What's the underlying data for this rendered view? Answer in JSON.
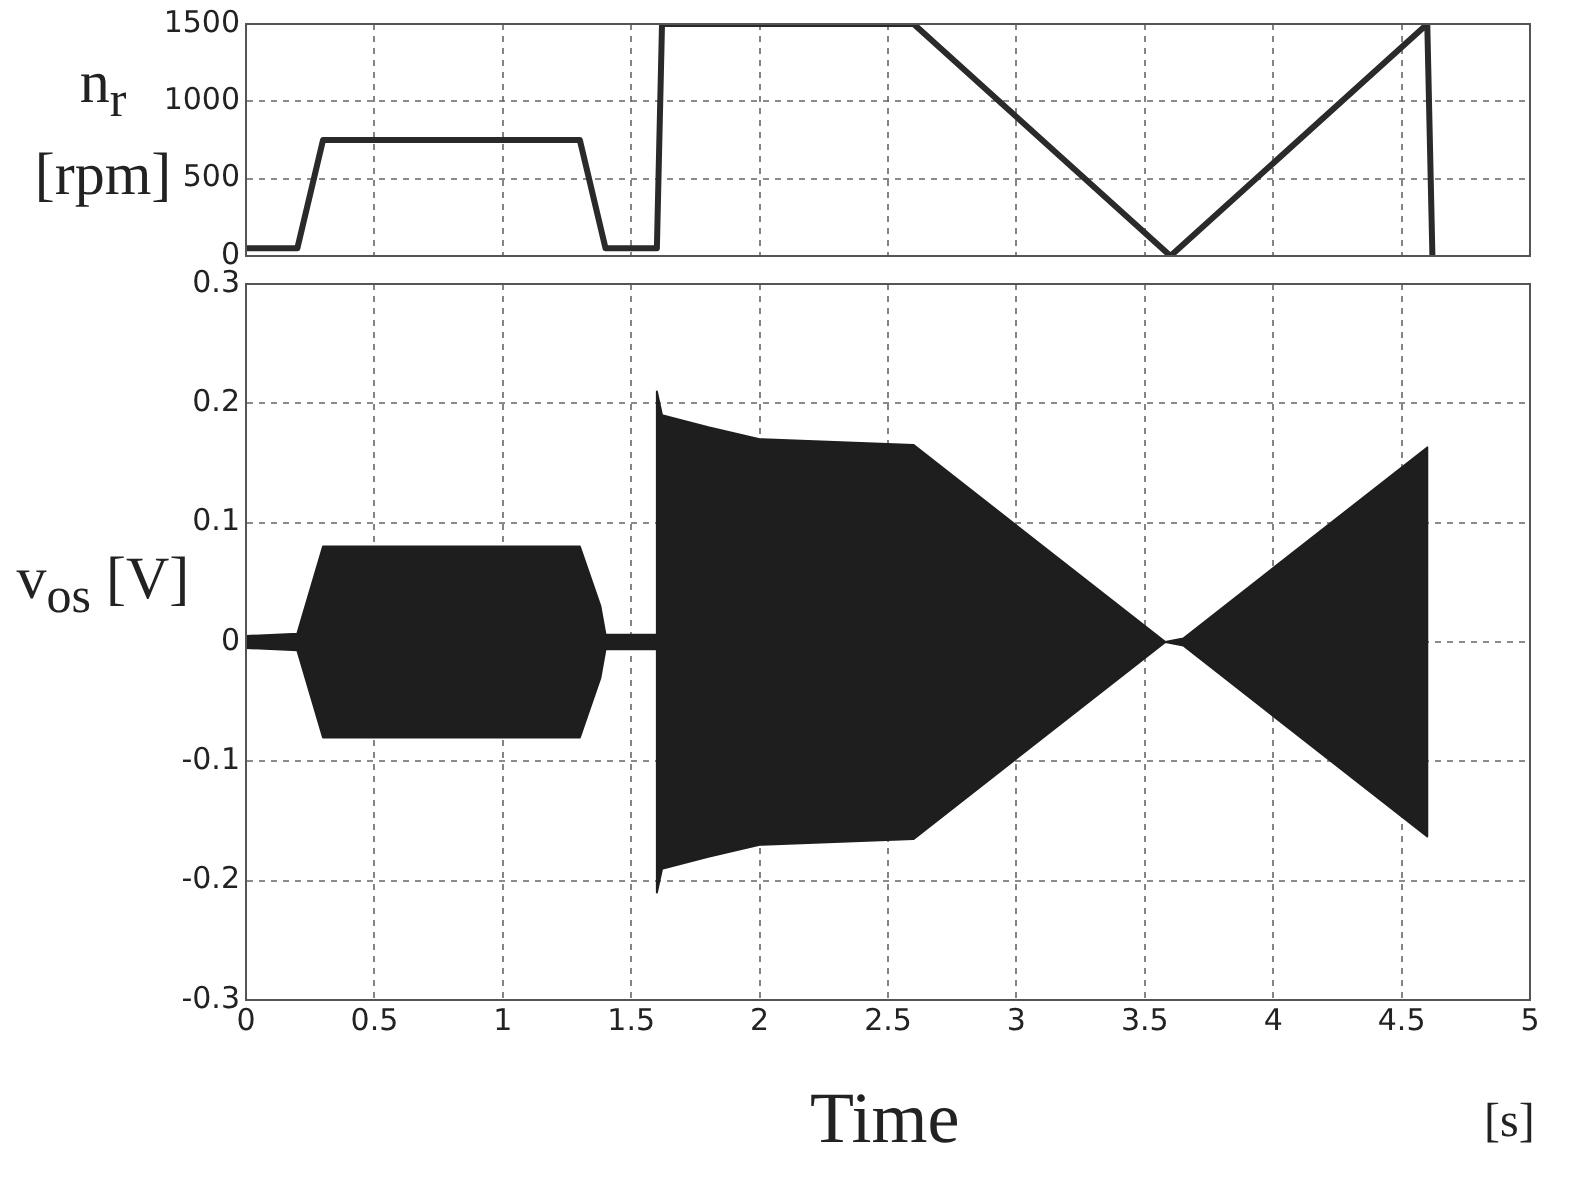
{
  "chart_data": [
    {
      "type": "line",
      "ylabel": "n$_{r}$ [rpm]",
      "x": [
        0,
        0.2,
        0.3,
        1.3,
        1.4,
        1.6,
        1.62,
        2.6,
        3.6,
        4.6,
        4.62
      ],
      "series": [
        {
          "color": "#2a2a2a",
          "values": [
            50,
            50,
            750,
            750,
            50,
            50,
            1500,
            1500,
            0,
            1500,
            0
          ]
        }
      ],
      "xlim": [
        0,
        5
      ],
      "xticks": [
        0,
        0.5,
        1,
        1.5,
        2,
        2.5,
        3,
        3.5,
        4,
        4.5,
        5
      ],
      "ylim": [
        0,
        1500
      ],
      "yticks": [
        0,
        500,
        1000,
        1500
      ],
      "grid": true,
      "tick_labels": "y",
      "legend": false,
      "marker": "none",
      "line_style": "solid"
    },
    {
      "type": "area",
      "xlabel": "Time",
      "ylabel": "v$_{os}$ [V]",
      "annotations": [
        "[s]"
      ],
      "series": [
        {
          "color": "#1e1e1e",
          "x": [
            0,
            0.2,
            0.3,
            1.3,
            1.38,
            1.4,
            1.6,
            1.6,
            1.62,
            1.8,
            2.0,
            2.6,
            3.58,
            3.65,
            4.6,
            4.6
          ],
          "values": [
            0.005,
            0.007,
            0.08,
            0.08,
            0.03,
            0.006,
            0.006,
            0.21,
            0.19,
            0.18,
            0.17,
            0.165,
            0,
            0.003,
            0.163,
            0
          ]
        },
        {
          "color": "#1e1e1e",
          "x": [
            0,
            0.2,
            0.3,
            1.3,
            1.38,
            1.4,
            1.6,
            1.6,
            1.62,
            1.8,
            2.0,
            2.6,
            3.58,
            3.65,
            4.6,
            4.6
          ],
          "values": [
            -0.005,
            -0.007,
            -0.08,
            -0.08,
            -0.03,
            -0.006,
            -0.006,
            -0.21,
            -0.19,
            -0.18,
            -0.17,
            -0.165,
            0,
            -0.003,
            -0.163,
            0
          ]
        }
      ],
      "xlim": [
        0,
        5
      ],
      "xticks": [
        0,
        0.5,
        1,
        1.5,
        2,
        2.5,
        3,
        3.5,
        4,
        4.5,
        5
      ],
      "ylim": [
        -0.3,
        0.3
      ],
      "yticks": [
        -0.3,
        -0.2,
        -0.1,
        0,
        0.1,
        0.2,
        0.3
      ],
      "grid": true,
      "legend": false,
      "marker": "none"
    }
  ]
}
